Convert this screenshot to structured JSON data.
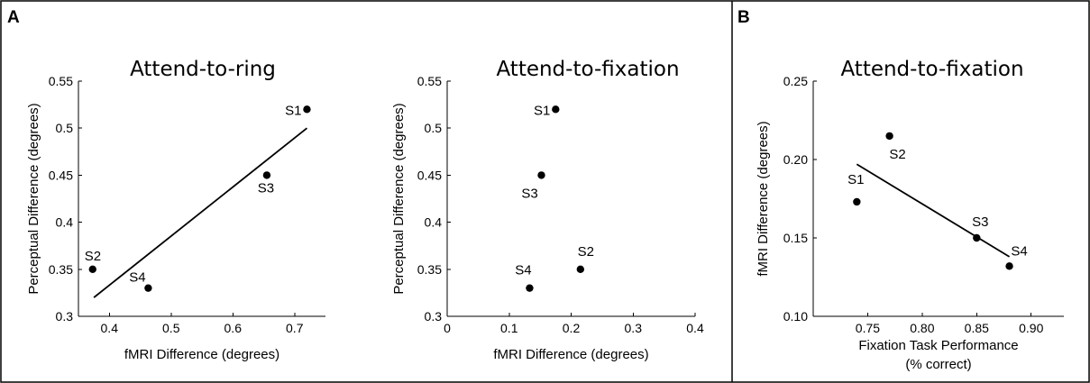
{
  "panels": [
    {
      "label": "A"
    },
    {
      "label": "B"
    }
  ],
  "chart_data": [
    {
      "type": "scatter",
      "title": "Attend-to-ring",
      "xlabel": "fMRI Difference (degrees)",
      "ylabel": "Perceptual Difference (degrees)",
      "xlim": [
        0.35,
        0.75
      ],
      "ylim": [
        0.3,
        0.55
      ],
      "xticks": [
        0.4,
        0.5,
        0.6,
        0.7
      ],
      "xticklabels": [
        "0.4",
        "0.5",
        "0.6",
        "0.7"
      ],
      "yticks": [
        0.3,
        0.35,
        0.4,
        0.45,
        0.5,
        0.55
      ],
      "yticklabels": [
        "0.3",
        "0.35",
        "0.4",
        "0.45",
        "0.5",
        "0.55"
      ],
      "points": [
        {
          "label": "S1",
          "x": 0.72,
          "y": 0.52
        },
        {
          "label": "S2",
          "x": 0.373,
          "y": 0.35
        },
        {
          "label": "S3",
          "x": 0.655,
          "y": 0.45
        },
        {
          "label": "S4",
          "x": 0.463,
          "y": 0.33
        }
      ],
      "fit_line": [
        [
          0.375,
          0.32
        ],
        [
          0.72,
          0.5
        ]
      ]
    },
    {
      "type": "scatter",
      "title": "Attend-to-fixation",
      "xlabel": "fMRI Difference (degrees)",
      "ylabel": "Perceptual Difference (degrees)",
      "xlim": [
        0,
        0.4
      ],
      "ylim": [
        0.3,
        0.55
      ],
      "xticks": [
        0,
        0.1,
        0.2,
        0.3,
        0.4
      ],
      "xticklabels": [
        "0",
        "0.1",
        "0.2",
        "0.3",
        "0.4"
      ],
      "yticks": [
        0.3,
        0.35,
        0.4,
        0.45,
        0.5,
        0.55
      ],
      "yticklabels": [
        "0.3",
        "0.35",
        "0.4",
        "0.45",
        "0.5",
        "0.55"
      ],
      "points": [
        {
          "label": "S1",
          "x": 0.175,
          "y": 0.52
        },
        {
          "label": "S2",
          "x": 0.215,
          "y": 0.35
        },
        {
          "label": "S3",
          "x": 0.152,
          "y": 0.45
        },
        {
          "label": "S4",
          "x": 0.133,
          "y": 0.33
        }
      ]
    },
    {
      "type": "scatter",
      "title": "Attend-to-fixation",
      "xlabel": "Fixation Task Performance",
      "xlabel2": "(% correct)",
      "ylabel": "fMRI Difference (degrees)",
      "xlim": [
        0.7,
        0.93
      ],
      "ylim": [
        0.1,
        0.25
      ],
      "xticks": [
        0.75,
        0.8,
        0.85,
        0.9
      ],
      "xticklabels": [
        "0.75",
        "0.80",
        "0.85",
        "0.90"
      ],
      "yticks": [
        0.1,
        0.15,
        0.2,
        0.25
      ],
      "yticklabels": [
        "0.10",
        "0.15",
        "0.20",
        "0.25"
      ],
      "points": [
        {
          "label": "S1",
          "x": 0.74,
          "y": 0.173
        },
        {
          "label": "S2",
          "x": 0.77,
          "y": 0.215
        },
        {
          "label": "S3",
          "x": 0.85,
          "y": 0.15
        },
        {
          "label": "S4",
          "x": 0.88,
          "y": 0.132
        }
      ],
      "fit_line": [
        [
          0.74,
          0.197
        ],
        [
          0.88,
          0.138
        ]
      ]
    }
  ]
}
